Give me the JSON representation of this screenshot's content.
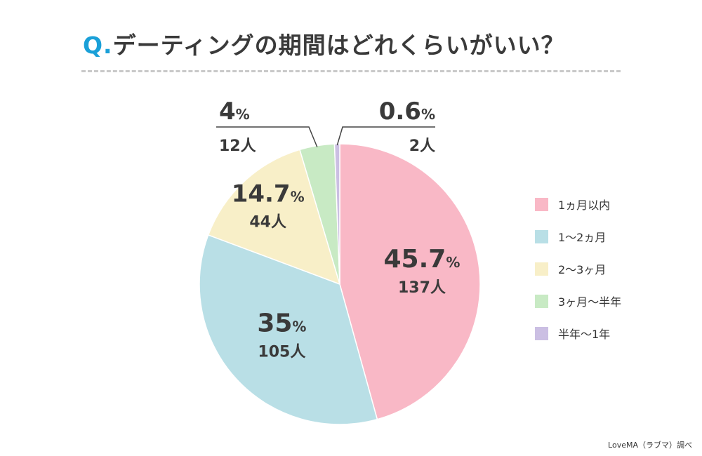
{
  "title": {
    "prefix": "Q.",
    "text": "デーティングの期間はどれくらいがいい？"
  },
  "source": "LoveMA（ラブマ）調べ",
  "chart_data": {
    "type": "pie",
    "title": "デーティングの期間はどれくらいがいい？",
    "slices": [
      {
        "label": "1ヵ月以内",
        "percent": 45.7,
        "pct_text": "45.7",
        "count": 137,
        "count_text": "137人",
        "color": "#f9b8c6"
      },
      {
        "label": "1〜2ヵ月",
        "percent": 35.0,
        "pct_text": "35",
        "count": 105,
        "count_text": "105人",
        "color": "#b9dfe6"
      },
      {
        "label": "2〜3ヶ月",
        "percent": 14.7,
        "pct_text": "14.7",
        "count": 44,
        "count_text": "44人",
        "color": "#f8efc8"
      },
      {
        "label": "3ヶ月〜半年",
        "percent": 4.0,
        "pct_text": "4",
        "count": 12,
        "count_text": "12人",
        "color": "#c8eac4"
      },
      {
        "label": "半年〜1年",
        "percent": 0.6,
        "pct_text": "0.6",
        "count": 2,
        "count_text": "2人",
        "color": "#cbbfe3"
      }
    ],
    "percent_symbol": "%",
    "legend_position": "right"
  }
}
